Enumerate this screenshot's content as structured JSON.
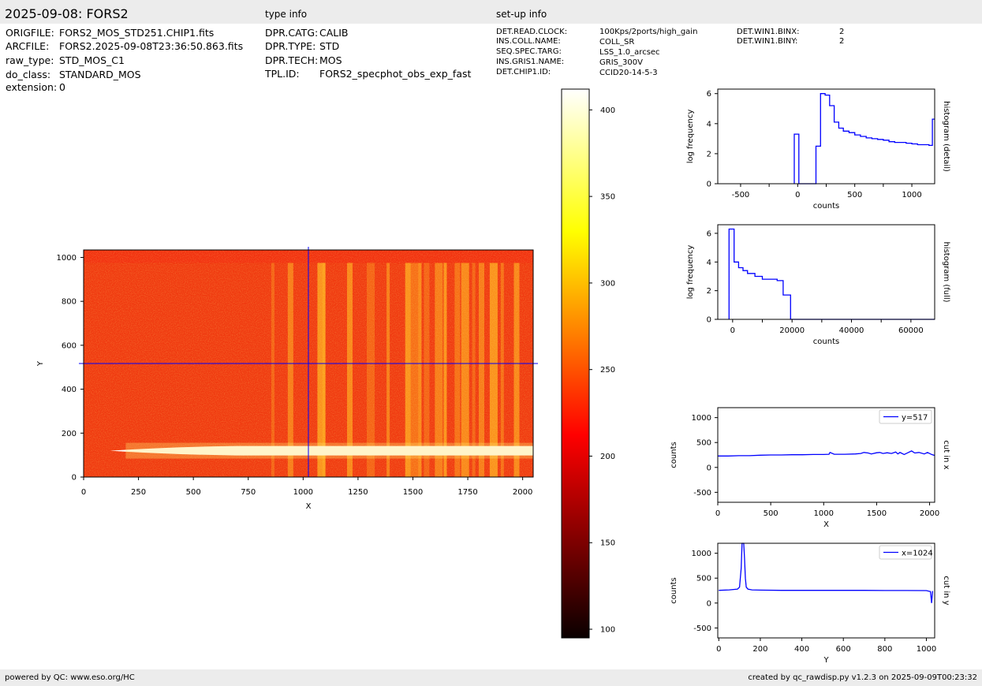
{
  "header": {
    "title": "2025-09-08: FORS2",
    "type_info_label": "type info",
    "setup_info_label": "set-up info"
  },
  "file_info": [
    {
      "key": "ORIGFILE:",
      "value": "FORS2_MOS_STD251.CHIP1.fits"
    },
    {
      "key": "ARCFILE:",
      "value": "FORS2.2025-09-08T23:36:50.863.fits"
    },
    {
      "key": "raw_type:",
      "value": "STD_MOS_C1"
    },
    {
      "key": "do_class:",
      "value": "STANDARD_MOS"
    },
    {
      "key": "extension:",
      "value": "0"
    }
  ],
  "type_info": [
    {
      "key": "DPR.CATG:",
      "value": "CALIB"
    },
    {
      "key": "DPR.TYPE:",
      "value": "STD"
    },
    {
      "key": "DPR.TECH:",
      "value": "MOS"
    },
    {
      "key": "TPL.ID:",
      "value": "FORS2_specphot_obs_exp_fast"
    }
  ],
  "setup_info": [
    {
      "key": "DET.READ.CLOCK:",
      "value": "100Kps/2ports/high_gain"
    },
    {
      "key": "INS.COLL.NAME:",
      "value": "COLL_SR"
    },
    {
      "key": "SEQ.SPEC.TARG:",
      "value": "LSS_1.0_arcsec"
    },
    {
      "key": "INS.GRIS1.NAME:",
      "value": "GRIS_300V"
    },
    {
      "key": "DET.CHIP1.ID:",
      "value": "CCID20-14-5-3"
    }
  ],
  "setup_info_2": [
    {
      "key": "DET.WIN1.BINX:",
      "value": "2"
    },
    {
      "key": "DET.WIN1.BINY:",
      "value": "2"
    }
  ],
  "footer": {
    "left": "powered by QC: www.eso.org/HC",
    "right": "created by qc_rawdisp.py v1.2.3 on 2025-09-09T00:23:32"
  },
  "chart_data": [
    {
      "type": "heatmap",
      "name": "raw image",
      "xlabel": "X",
      "ylabel": "Y",
      "xlim": [
        0,
        2048
      ],
      "ylim": [
        0,
        1034
      ],
      "xticks": [
        0,
        250,
        500,
        750,
        1000,
        1250,
        1500,
        1750,
        2000
      ],
      "yticks": [
        0,
        200,
        400,
        600,
        800,
        1000
      ],
      "crosshair": {
        "x": 1024,
        "y": 517
      },
      "colormap": "hot",
      "colorbar": {
        "min": 95,
        "max": 412,
        "ticks": [
          100,
          150,
          200,
          250,
          300,
          350,
          400
        ]
      },
      "bright_columns": [
        855,
        930,
        1065,
        1088,
        1200,
        1290,
        1380,
        1465,
        1490,
        1525,
        1550,
        1600,
        1640,
        1690,
        1720,
        1770,
        1800,
        1850,
        1900,
        1960
      ],
      "spectrum_trace": {
        "y": 120,
        "x_start": 120,
        "x_end": 2048
      }
    },
    {
      "type": "line",
      "name": "histogram (detail)",
      "xlabel": "counts",
      "ylabel": "log frequency",
      "right_label": "histogram (detail)",
      "xlim": [
        -700,
        1200
      ],
      "ylim": [
        0,
        6.3
      ],
      "xticks": [
        -500,
        0,
        500,
        1000
      ],
      "yticks": [
        0,
        2,
        4,
        6
      ],
      "color": "#0000ff",
      "x": [
        -30,
        -30,
        10,
        10,
        160,
        160,
        200,
        200,
        240,
        240,
        280,
        280,
        320,
        320,
        360,
        360,
        400,
        400,
        450,
        450,
        500,
        500,
        550,
        550,
        600,
        600,
        650,
        650,
        700,
        700,
        750,
        750,
        800,
        800,
        850,
        850,
        900,
        900,
        950,
        950,
        1000,
        1000,
        1050,
        1050,
        1100,
        1100,
        1150,
        1150,
        1180,
        1180,
        1200
      ],
      "y": [
        0,
        3.3,
        3.3,
        0,
        0,
        2.5,
        2.5,
        6.0,
        6.0,
        5.9,
        5.9,
        5.2,
        5.2,
        4.1,
        4.1,
        3.7,
        3.7,
        3.5,
        3.5,
        3.4,
        3.4,
        3.25,
        3.25,
        3.15,
        3.15,
        3.05,
        3.05,
        3.0,
        3.0,
        2.95,
        2.95,
        2.9,
        2.9,
        2.8,
        2.8,
        2.75,
        2.75,
        2.75,
        2.75,
        2.7,
        2.7,
        2.65,
        2.65,
        2.6,
        2.6,
        2.6,
        2.6,
        2.55,
        2.55,
        4.3,
        4.3
      ]
    },
    {
      "type": "line",
      "name": "histogram (full)",
      "xlabel": "counts",
      "ylabel": "log frequency",
      "right_label": "histogram (full)",
      "xlim": [
        -5000,
        68000
      ],
      "ylim": [
        0,
        6.6
      ],
      "xticks": [
        0,
        20000,
        40000,
        60000
      ],
      "yticks": [
        0,
        2,
        4,
        6
      ],
      "color": "#0000ff",
      "x": [
        -1200,
        -1200,
        500,
        500,
        2000,
        2000,
        3500,
        3500,
        5000,
        5000,
        7500,
        7500,
        10000,
        10000,
        15000,
        15000,
        17000,
        17000,
        19500,
        19500,
        68000
      ],
      "y": [
        0,
        6.3,
        6.3,
        4.0,
        4.0,
        3.6,
        3.6,
        3.4,
        3.4,
        3.2,
        3.2,
        3.0,
        3.0,
        2.8,
        2.8,
        2.7,
        2.7,
        1.7,
        1.7,
        0,
        0
      ]
    },
    {
      "type": "line",
      "name": "cut in x",
      "xlabel": "X",
      "ylabel": "counts",
      "right_label": "cut in x",
      "xlim": [
        0,
        2048
      ],
      "ylim": [
        -700,
        1200
      ],
      "xticks": [
        0,
        500,
        1000,
        1500,
        2000
      ],
      "yticks": [
        -500,
        0,
        500,
        1000
      ],
      "legend": "y=517",
      "legend_position": "top-right",
      "color": "#0000ff",
      "x": [
        0,
        100,
        200,
        300,
        400,
        500,
        600,
        700,
        800,
        900,
        1000,
        1050,
        1060,
        1100,
        1200,
        1300,
        1350,
        1380,
        1420,
        1450,
        1500,
        1530,
        1560,
        1600,
        1640,
        1680,
        1700,
        1720,
        1760,
        1800,
        1830,
        1860,
        1900,
        1950,
        1980,
        2020,
        2048
      ],
      "y": [
        230,
        230,
        235,
        235,
        245,
        250,
        250,
        255,
        255,
        260,
        260,
        265,
        300,
        265,
        265,
        270,
        280,
        300,
        290,
        270,
        295,
        300,
        280,
        295,
        280,
        310,
        270,
        300,
        260,
        300,
        330,
        290,
        300,
        270,
        300,
        260,
        240
      ]
    },
    {
      "type": "line",
      "name": "cut in y",
      "xlabel": "Y",
      "ylabel": "counts",
      "right_label": "cut in y",
      "xlim": [
        -5,
        1040
      ],
      "ylim": [
        -700,
        1200
      ],
      "xticks": [
        0,
        200,
        400,
        600,
        800,
        1000
      ],
      "yticks": [
        -500,
        0,
        500,
        1000
      ],
      "legend": "x=1024",
      "legend_position": "top-right",
      "color": "#0000ff",
      "x": [
        0,
        50,
        90,
        100,
        108,
        112,
        116,
        120,
        124,
        128,
        132,
        140,
        160,
        200,
        300,
        400,
        500,
        600,
        700,
        800,
        900,
        1000,
        1020,
        1025,
        1030
      ],
      "y": [
        255,
        265,
        280,
        320,
        700,
        1200,
        1200,
        1200,
        900,
        500,
        320,
        280,
        265,
        260,
        255,
        255,
        255,
        255,
        255,
        252,
        252,
        250,
        230,
        0,
        240
      ]
    }
  ]
}
